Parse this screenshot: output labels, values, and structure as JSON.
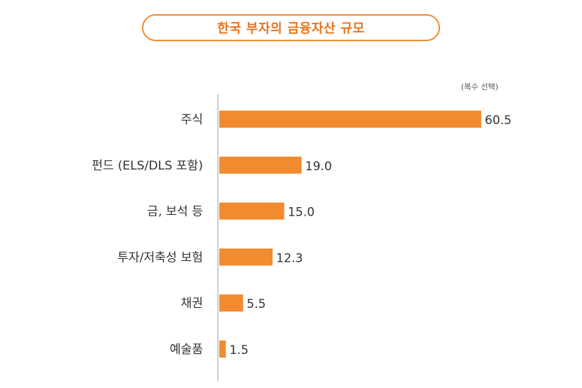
{
  "colors": {
    "bar": "#f28a2f",
    "title": "#e8731a",
    "axis": "#cccccc",
    "text": "#333333"
  },
  "header": {
    "title": "한국 부자의 금융자산 규모",
    "note": "(복수 선택)"
  },
  "chart_data": {
    "type": "bar",
    "orientation": "horizontal",
    "title": "한국 부자의 금융자산 규모",
    "note": "(복수 선택)",
    "categories": [
      "주식",
      "펀드 (ELS/DLS 포함)",
      "금, 보석 등",
      "투자/저축성 보험",
      "채권",
      "예술품"
    ],
    "values": [
      60.5,
      19.0,
      15.0,
      12.3,
      5.5,
      1.5
    ],
    "value_labels": [
      "60.5",
      "19.0",
      "15.0",
      "12.3",
      "5.5",
      "1.5"
    ],
    "xlim": [
      0,
      60.5
    ],
    "xlabel": "",
    "ylabel": ""
  }
}
